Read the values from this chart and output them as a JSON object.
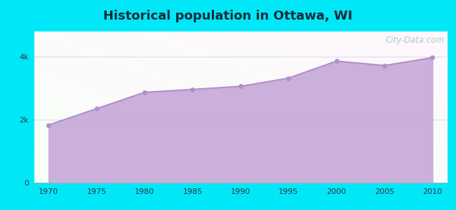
{
  "title": "Historical population in Ottawa, WI",
  "title_fontsize": 13,
  "title_fontweight": "bold",
  "title_color": "#1a2a3a",
  "years": [
    1970,
    1975,
    1980,
    1985,
    1990,
    1995,
    2000,
    2005,
    2010
  ],
  "population": [
    1832,
    2350,
    2870,
    2960,
    3060,
    3320,
    3860,
    3720,
    3970
  ],
  "line_color": "#b090cc",
  "fill_color": "#c5a8d8",
  "fill_alpha": 0.9,
  "marker_color": "#b090cc",
  "marker_size": 25,
  "bg_outer": "#00e8f8",
  "bg_grad_left": "#c8eec8",
  "bg_grad_right": "#f5fdf5",
  "bg_grad_top": "#f8ffff",
  "bg_grad_bottom": "#c8eec8",
  "grid_color": "#d8d8e8",
  "ytick_labels": [
    "0",
    "2k",
    "4k"
  ],
  "ytick_values": [
    0,
    2000,
    4000
  ],
  "ylim": [
    0,
    4800
  ],
  "xlim": [
    1968.5,
    2011.5
  ],
  "watermark": "City-Data.com"
}
